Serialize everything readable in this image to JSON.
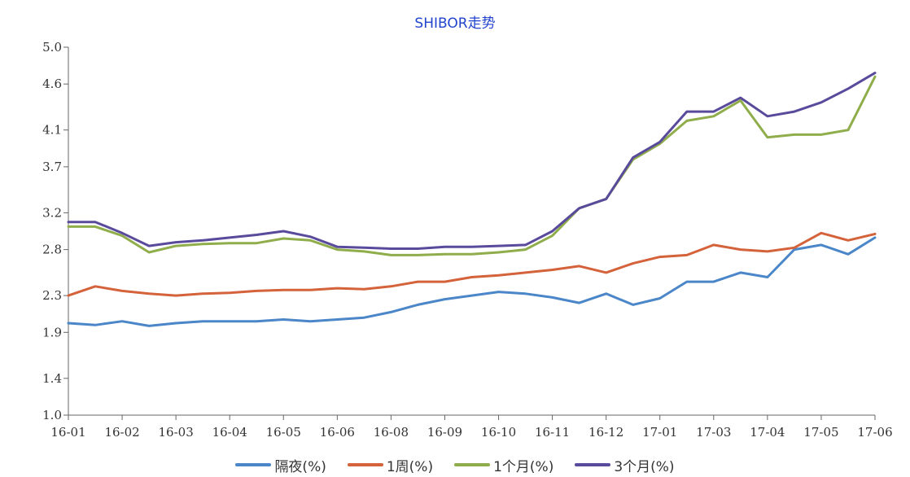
{
  "chart_data": {
    "type": "line",
    "title": "SHIBOR走势",
    "xlabel": "",
    "ylabel": "",
    "ylim": [
      1.0,
      5.0
    ],
    "yticks": [
      "1.0",
      "1.4",
      "1.9",
      "2.3",
      "2.8",
      "3.2",
      "3.7",
      "4.1",
      "4.6",
      "5.0"
    ],
    "ytick_values": [
      1.0,
      1.4,
      1.9,
      2.3,
      2.8,
      3.2,
      3.7,
      4.1,
      4.6,
      5.0
    ],
    "categories": [
      "16-01",
      "16-02",
      "16-03",
      "16-04",
      "16-05",
      "16-06",
      "16-08",
      "16-09",
      "16-10",
      "16-11",
      "16-12",
      "17-01",
      "17-03",
      "17-04",
      "17-05",
      "17-06"
    ],
    "x": [
      0,
      0.5,
      1,
      1.5,
      2,
      2.5,
      3,
      3.5,
      4,
      4.5,
      5,
      5.5,
      6,
      6.5,
      7,
      7.5,
      8,
      8.5,
      9,
      9.5,
      10,
      10.5,
      11,
      11.5,
      12,
      12.5,
      13,
      13.5,
      14,
      14.5,
      15
    ],
    "series": [
      {
        "name": "隔夜(%)",
        "color": "#4a86c8",
        "values": [
          2.0,
          1.98,
          2.02,
          1.97,
          2.0,
          2.02,
          2.02,
          2.02,
          2.04,
          2.02,
          2.04,
          2.06,
          2.12,
          2.2,
          2.26,
          2.3,
          2.34,
          2.32,
          2.28,
          2.22,
          2.32,
          2.2,
          2.27,
          2.45,
          2.45,
          2.55,
          2.5,
          2.8,
          2.85,
          2.75,
          2.93
        ]
      },
      {
        "name": "1周(%)",
        "color": "#d4623a",
        "values": [
          2.3,
          2.4,
          2.35,
          2.32,
          2.3,
          2.32,
          2.33,
          2.35,
          2.36,
          2.36,
          2.38,
          2.37,
          2.4,
          2.45,
          2.45,
          2.5,
          2.52,
          2.55,
          2.58,
          2.62,
          2.55,
          2.65,
          2.72,
          2.74,
          2.85,
          2.8,
          2.78,
          2.82,
          2.98,
          2.9,
          2.97
        ]
      },
      {
        "name": "1个月(%)",
        "color": "#8fad4a",
        "values": [
          3.05,
          3.05,
          2.95,
          2.77,
          2.84,
          2.86,
          2.87,
          2.87,
          2.92,
          2.9,
          2.8,
          2.78,
          2.74,
          2.74,
          2.75,
          2.75,
          2.77,
          2.8,
          2.95,
          3.25,
          3.35,
          3.78,
          3.95,
          4.2,
          4.25,
          4.42,
          4.02,
          4.05,
          4.05,
          4.1,
          4.68
        ]
      },
      {
        "name": "3个月(%)",
        "color": "#5a4a9c",
        "values": [
          3.1,
          3.1,
          2.98,
          2.84,
          2.88,
          2.9,
          2.93,
          2.96,
          3.0,
          2.94,
          2.83,
          2.82,
          2.81,
          2.81,
          2.83,
          2.83,
          2.84,
          2.85,
          3.0,
          3.25,
          3.35,
          3.8,
          3.97,
          4.3,
          4.3,
          4.45,
          4.25,
          4.3,
          4.4,
          4.55,
          4.72
        ]
      }
    ]
  }
}
